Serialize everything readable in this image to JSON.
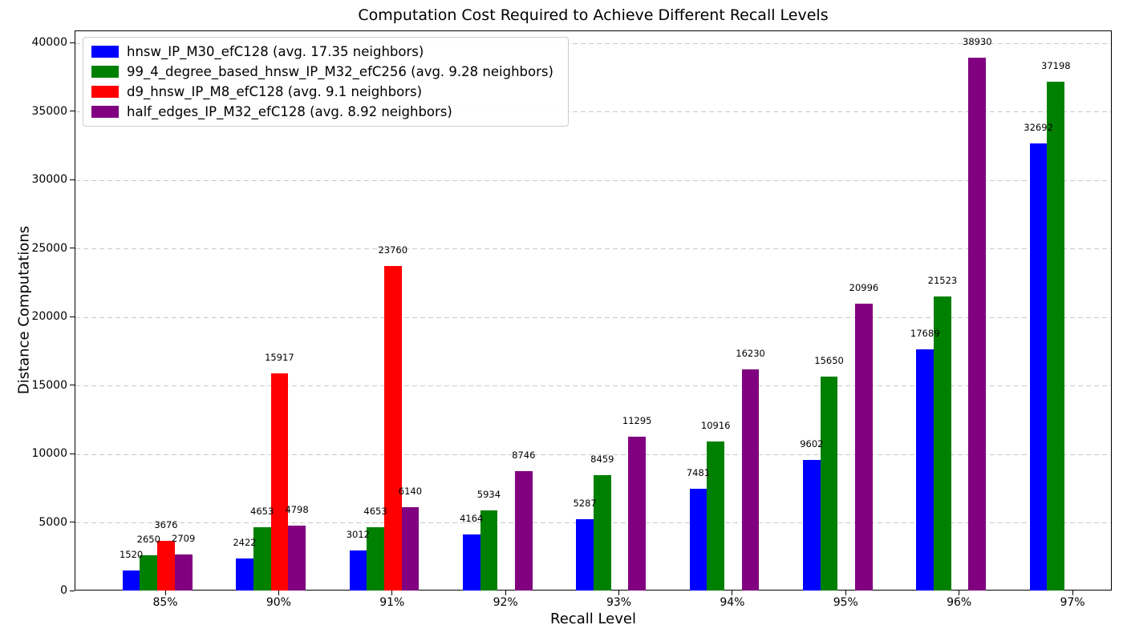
{
  "chart_data": {
    "type": "bar",
    "title": "Computation Cost Required to Achieve Different Recall Levels",
    "xlabel": "Recall Level",
    "ylabel": "Distance Computations",
    "categories": [
      "85%",
      "90%",
      "91%",
      "92%",
      "93%",
      "94%",
      "95%",
      "96%",
      "97%"
    ],
    "series": [
      {
        "name": "hnsw_IP_M30_efC128 (avg. 17.35 neighbors)",
        "color": "#0000ff",
        "values": [
          1520,
          2422,
          3012,
          4164,
          5287,
          7481,
          9602,
          17689,
          32692
        ]
      },
      {
        "name": "99_4_degree_based_hnsw_IP_M32_efC256 (avg. 9.28 neighbors)",
        "color": "#008000",
        "values": [
          2650,
          4653,
          4653,
          5934,
          8459,
          10916,
          15650,
          21523,
          37198
        ]
      },
      {
        "name": "d9_hnsw_IP_M8_efC128 (avg. 9.1 neighbors)",
        "color": "#ff0000",
        "values": [
          3676,
          15917,
          23760,
          null,
          null,
          null,
          null,
          null,
          null
        ]
      },
      {
        "name": "half_edges_IP_M32_efC128 (avg. 8.92 neighbors)",
        "color": "#800080",
        "values": [
          2709,
          4798,
          6140,
          8746,
          11295,
          16230,
          20996,
          38930,
          null
        ]
      }
    ],
    "yticks": [
      0,
      5000,
      10000,
      15000,
      20000,
      25000,
      30000,
      35000,
      40000
    ],
    "ylim": [
      0,
      40885
    ],
    "grid": "horizontal-dashed",
    "legend_position": "upper-left",
    "bar_value_labels": true
  }
}
